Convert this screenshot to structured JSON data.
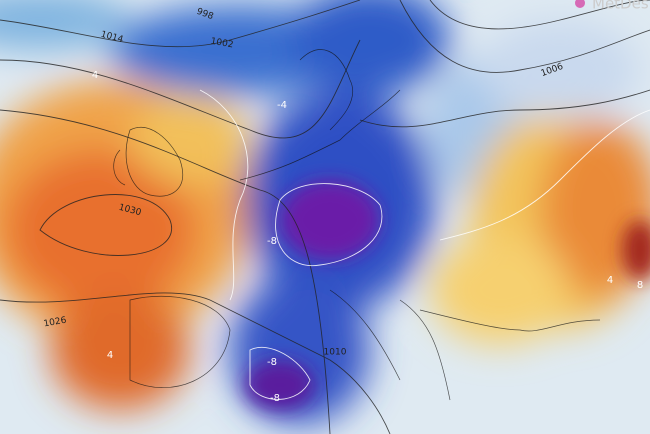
{
  "brand": "MetDes",
  "isobar_labels": [
    "998",
    "1014",
    "1002",
    "1006",
    "1030",
    "1026",
    "1010"
  ],
  "anomaly_labels": [
    "-8",
    "-8",
    "-8",
    "8",
    "4",
    "4",
    "-4",
    "4"
  ]
}
